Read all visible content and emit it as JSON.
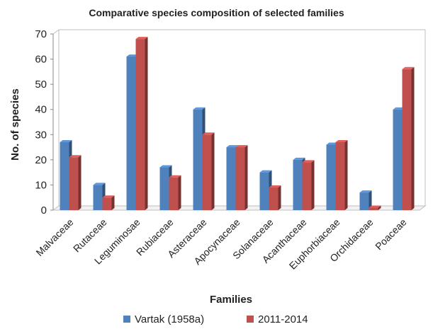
{
  "chart_data": {
    "type": "bar",
    "title": "Comparative species composition of selected families",
    "xlabel": "Families",
    "ylabel": "No. of species",
    "ylim": [
      0,
      70
    ],
    "yticks": [
      0,
      10,
      20,
      30,
      40,
      50,
      60,
      70
    ],
    "grid": false,
    "legend_position": "bottom",
    "categories": [
      "Malvaceae",
      "Rutaceae",
      "Leguminosae",
      "Rubiaceae",
      "Asteraceae",
      "Apocynaceae",
      "Solanaceae",
      "Acanthaceae",
      "Euphorbiaceae",
      "Orchidaceae",
      "Poaceae"
    ],
    "series": [
      {
        "name": "Vartak (1958a)",
        "color": "#4F81BD",
        "values": [
          27,
          10,
          61,
          17,
          40,
          25,
          15,
          20,
          26,
          7,
          40
        ]
      },
      {
        "name": "2011-2014",
        "color": "#C0504D",
        "values": [
          21,
          5,
          68,
          13,
          30,
          25,
          9,
          19,
          27,
          1,
          56
        ]
      }
    ]
  }
}
